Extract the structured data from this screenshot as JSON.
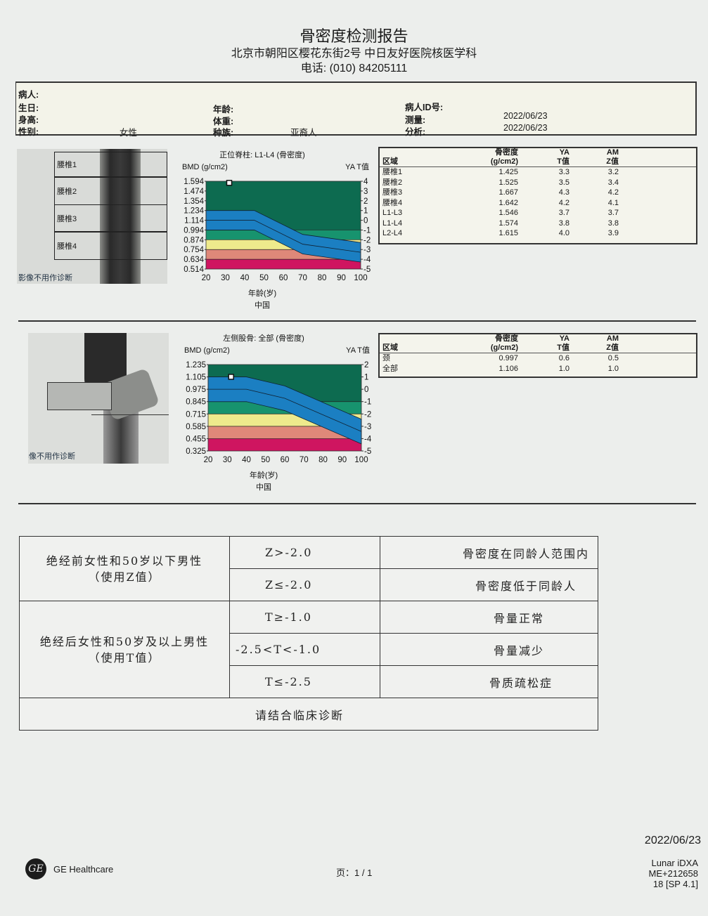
{
  "header": {
    "title": "骨密度检测报告",
    "address": "北京市朝阳区樱花东街2号  中日友好医院核医学科",
    "phone": "电话: (010) 84205111"
  },
  "patient": {
    "name_label": "病人:",
    "dob_label": "生日:",
    "height_label": "身高:",
    "sex_label": "性别:",
    "sex_value": "女性",
    "age_label": "年龄:",
    "weight_label": "体重:",
    "ethnicity_label": "种族:",
    "ethnicity_value": "亚裔人",
    "id_label": "病人ID号:",
    "measured_label": "测量:",
    "measured_value": "2022/06/23",
    "analyzed_label": "分析:",
    "analyzed_value": "2022/06/23"
  },
  "spine_image": {
    "regions": [
      "腰椎1",
      "腰椎2",
      "腰椎3",
      "腰椎4"
    ],
    "disclaimer": "影像不用作诊断"
  },
  "hip_image": {
    "disclaimer": "影像不用作诊断"
  },
  "spine_table": {
    "headers": [
      "区域",
      "骨密度",
      "(g/cm2)",
      "YA",
      "T值",
      "AM",
      "Z值"
    ],
    "rows": [
      [
        "腰椎1",
        "1.425",
        "3.3",
        "3.2"
      ],
      [
        "腰椎2",
        "1.525",
        "3.5",
        "3.4"
      ],
      [
        "腰椎3",
        "1.667",
        "4.3",
        "4.2"
      ],
      [
        "腰椎4",
        "1.642",
        "4.2",
        "4.1"
      ],
      [
        "L1-L3",
        "1.546",
        "3.7",
        "3.7"
      ],
      [
        "L1-L4",
        "1.574",
        "3.8",
        "3.8"
      ],
      [
        "L2-L4",
        "1.615",
        "4.0",
        "3.9"
      ]
    ]
  },
  "hip_table": {
    "headers": [
      "区域",
      "骨密度",
      "(g/cm2)",
      "YA",
      "T值",
      "AM",
      "Z值"
    ],
    "rows": [
      [
        "颈",
        "0.997",
        "0.6",
        "0.5"
      ],
      [
        "全部",
        "1.106",
        "1.0",
        "1.0"
      ]
    ]
  },
  "chart_data": [
    {
      "type": "area",
      "title": "正位脊柱: L1-L4 (骨密度)",
      "ylabel": "BMD (g/cm2)",
      "y2label": "YA T值",
      "xlabel": "年龄(岁)",
      "reference": "中国",
      "xlim": [
        20,
        100
      ],
      "ylim": [
        0.514,
        1.594
      ],
      "xticks": [
        "20",
        "30",
        "40",
        "50",
        "60",
        "70",
        "80",
        "90",
        "100"
      ],
      "yticks": [
        "1.594",
        "1.474",
        "1.354",
        "1.234",
        "1.114",
        "0.994",
        "0.874",
        "0.754",
        "0.634",
        "0.514"
      ],
      "y2ticks": [
        "4",
        "3",
        "2",
        "1",
        "0",
        "-1",
        "-2",
        "-3",
        "-4",
        "-5"
      ],
      "t_zero": 1.114,
      "t_sd": 0.12,
      "reference_curve": {
        "age": [
          20,
          45,
          70,
          100
        ],
        "bmd": [
          1.114,
          1.114,
          0.82,
          0.72
        ],
        "sd": 0.12
      },
      "patient_point": {
        "age": 32,
        "bmd": 1.574
      },
      "band_colors": {
        "above": "#0d6b50",
        "t_minus1": "#17936e",
        "t_minus2": "#eeea8c",
        "t_minus3": "#df8879",
        "t_minus4": "#cf1560",
        "curve": "#1b7fc2"
      }
    },
    {
      "type": "area",
      "title": "左侧股骨: 全部 (骨密度)",
      "ylabel": "BMD (g/cm2)",
      "y2label": "YA T值",
      "xlabel": "年龄(岁)",
      "reference": "中国",
      "xlim": [
        20,
        100
      ],
      "ylim": [
        0.325,
        1.235
      ],
      "xticks": [
        "20",
        "30",
        "40",
        "50",
        "60",
        "70",
        "80",
        "90",
        "100"
      ],
      "yticks": [
        "1.235",
        "1.105",
        "0.975",
        "0.845",
        "0.715",
        "0.585",
        "0.455",
        "0.325"
      ],
      "y2ticks": [
        "2",
        "1",
        "0",
        "-1",
        "-2",
        "-3",
        "-4",
        "-5"
      ],
      "t_zero": 0.975,
      "t_sd": 0.13,
      "reference_curve": {
        "age": [
          20,
          40,
          60,
          100
        ],
        "bmd": [
          0.975,
          0.975,
          0.88,
          0.53
        ],
        "sd": 0.13
      },
      "patient_point": {
        "age": 32,
        "bmd": 1.106
      },
      "band_colors": {
        "above": "#0d6b50",
        "t_minus1": "#17936e",
        "t_minus2": "#eeea8c",
        "t_minus3": "#df8879",
        "t_minus4": "#cf1560",
        "curve": "#1b7fc2"
      }
    }
  ],
  "criteria": {
    "group1": {
      "line1": "绝经前女性和50岁以下男性",
      "line2": "（使用Z值）"
    },
    "group2": {
      "line1": "绝经后女性和50岁及以上男性",
      "line2": "（使用T值）"
    },
    "rows": [
      {
        "condition": "Z>-2.0",
        "result": "骨密度在同龄人范围内"
      },
      {
        "condition": "Z≤-2.0",
        "result": "骨密度低于同龄人"
      },
      {
        "condition": "T≥-1.0",
        "result": "骨量正常"
      },
      {
        "condition": "-2.5<T<-1.0",
        "result": "骨量减少"
      },
      {
        "condition": "T≤-2.5",
        "result": "骨质疏松症"
      }
    ],
    "footer": "请结合临床诊断"
  },
  "footer": {
    "brand": "GE Healthcare",
    "logo_text": "GE",
    "page": "页：1 / 1",
    "date": "2022/06/23",
    "device": "Lunar iDXA",
    "serial": "ME+212658",
    "version": "18 [SP 4.1]"
  }
}
